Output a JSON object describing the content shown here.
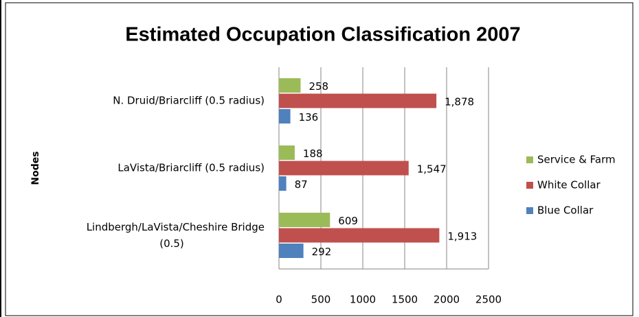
{
  "chart_data": {
    "type": "hbar",
    "title": "Estimated Occupation Classification 2007",
    "y_label": "Nodes",
    "categories": [
      "N. Druid/Briarcliff (0.5 radius)",
      "LaVista/Briarcliff (0.5 radius)",
      "Lindbergh/LaVista/Cheshire Bridge (0.5)"
    ],
    "series": [
      {
        "name": "Service & Farm",
        "color": "#9bbb59",
        "values": [
          258,
          188,
          609
        ]
      },
      {
        "name": "White Collar",
        "color": "#c0504d",
        "values": [
          1878,
          1547,
          1913
        ],
        "value_labels": [
          "1,878",
          "1,547",
          "1,913"
        ]
      },
      {
        "name": "Blue Collar",
        "color": "#4f81bd",
        "values": [
          136,
          87,
          292
        ]
      }
    ],
    "xlim": [
      0,
      2500
    ],
    "xticks": [
      0,
      500,
      1000,
      1500,
      2000,
      2500
    ],
    "grid": true,
    "legend": "right"
  }
}
